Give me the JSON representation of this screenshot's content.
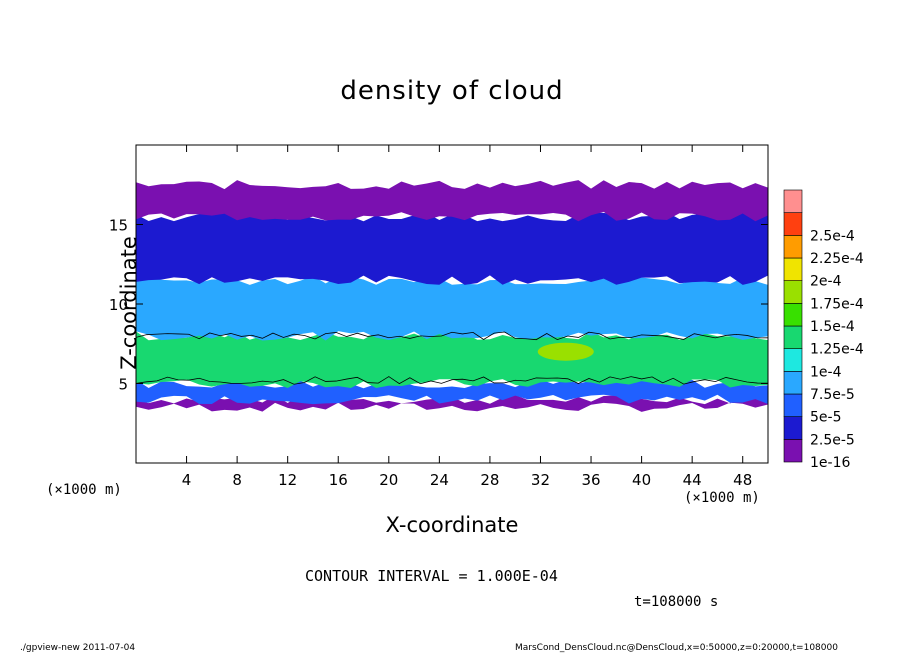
{
  "chart_data": {
    "type": "heatmap",
    "title": "density of cloud",
    "xlabel": "X-coordinate",
    "ylabel": "Z-coordinate",
    "x_unit": "(×1000 m)",
    "y_unit": "(×1000 m)",
    "xlim": [
      0,
      50
    ],
    "ylim": [
      0,
      20
    ],
    "x_ticks": [
      4,
      8,
      12,
      16,
      20,
      24,
      28,
      32,
      36,
      40,
      44,
      48
    ],
    "y_ticks": [
      5,
      10,
      15
    ],
    "colorbar": {
      "labels": [
        "1e-16",
        "2.5e-5",
        "5e-5",
        "7.5e-5",
        "1e-4",
        "1.25e-4",
        "1.5e-4",
        "1.75e-4",
        "2e-4",
        "2.25e-4",
        "2.5e-4"
      ],
      "colors": [
        "#7a10b0",
        "#1c1ad0",
        "#2060ff",
        "#2aa8ff",
        "#1ee8e0",
        "#18d870",
        "#38e000",
        "#9ae000",
        "#f0e400",
        "#ff9c00",
        "#ff4010",
        "#ff8f8f"
      ]
    },
    "cloud_layers": [
      {
        "z_bottom": 3.5,
        "z_top": 4.0,
        "level": "1e-16"
      },
      {
        "z_bottom": 4.0,
        "z_top": 5.0,
        "level": "5e-5"
      },
      {
        "z_bottom": 5.0,
        "z_top": 8.0,
        "level": "1.25e-4"
      },
      {
        "z_bottom": 8.0,
        "z_top": 11.5,
        "level": "7.5e-5"
      },
      {
        "z_bottom": 11.5,
        "z_top": 15.5,
        "level": "2.5e-5"
      },
      {
        "z_bottom": 15.5,
        "z_top": 17.5,
        "level": "1e-16"
      }
    ],
    "max_region": {
      "x": 34,
      "z": 7,
      "level": "1.75e-4"
    },
    "contour_interval": "CONTOUR INTERVAL = 1.000E-04",
    "time_label": "t=108000 s"
  },
  "footer": {
    "left": "./gpview-new   2011-07-04",
    "right": "MarsCond_DensCloud.nc@DensCloud,x=0:50000,z=0:20000,t=108000"
  },
  "x_unit_left": "(×1000 m)"
}
